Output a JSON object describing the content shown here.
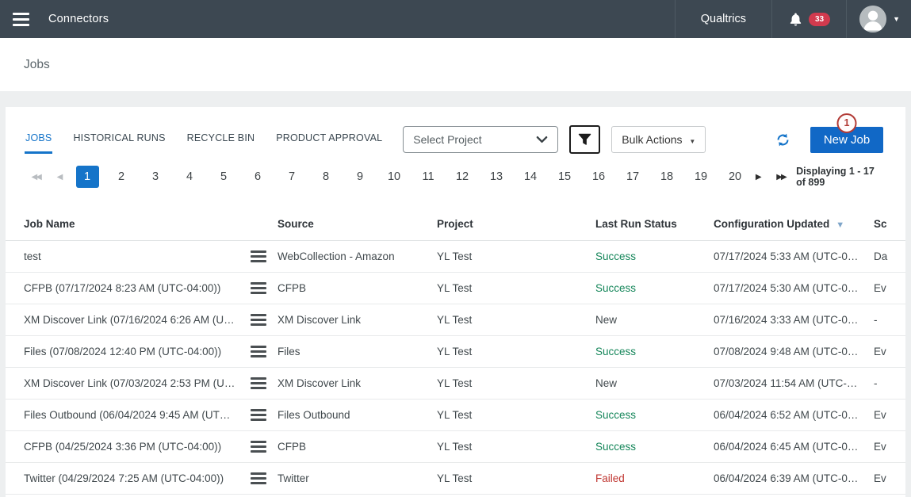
{
  "header": {
    "app_title": "Connectors",
    "brand": "Qualtrics",
    "notification_count": "33"
  },
  "page": {
    "title": "Jobs"
  },
  "tabs": [
    {
      "label": "JOBS",
      "active": true
    },
    {
      "label": "HISTORICAL RUNS",
      "active": false
    },
    {
      "label": "RECYCLE BIN",
      "active": false
    },
    {
      "label": "PRODUCT APPROVAL",
      "active": false
    }
  ],
  "toolbar": {
    "project_select_value": "Select Project",
    "bulk_actions_label": "Bulk Actions",
    "new_job_label": "New Job",
    "annotation_badge": "1"
  },
  "pagination": {
    "pages": [
      "1",
      "2",
      "3",
      "4",
      "5",
      "6",
      "7",
      "8",
      "9",
      "10",
      "11",
      "12",
      "13",
      "14",
      "15",
      "16",
      "17",
      "18",
      "19",
      "20"
    ],
    "active_page": "1",
    "displaying_text": "Displaying 1 - 17 of 899"
  },
  "icons": {
    "first": "◀◀",
    "prev": "◀",
    "next": "▶",
    "last": "▶▶",
    "user_caret": "▼",
    "bulk_caret": "▼",
    "sort_desc": "▼"
  },
  "table": {
    "columns": [
      {
        "label": "Job Name",
        "sorted": false
      },
      {
        "label": "Source",
        "sorted": false
      },
      {
        "label": "Project",
        "sorted": false
      },
      {
        "label": "Last Run Status",
        "sorted": false
      },
      {
        "label": "Configuration Updated",
        "sorted": true
      },
      {
        "label": "Sc",
        "sorted": false
      }
    ],
    "rows": [
      {
        "job_name": "test",
        "source": "WebCollection - Amazon",
        "project": "YL Test",
        "status": "Success",
        "status_type": "success",
        "config_updated": "07/17/2024 5:33 AM (UTC-0…",
        "schedule": "Da"
      },
      {
        "job_name": "CFPB (07/17/2024 8:23 AM (UTC-04:00))",
        "source": "CFPB",
        "project": "YL Test",
        "status": "Success",
        "status_type": "success",
        "config_updated": "07/17/2024 5:30 AM (UTC-0…",
        "schedule": "Ev"
      },
      {
        "job_name": "XM Discover Link (07/16/2024 6:26 AM (U…",
        "source": "XM Discover Link",
        "project": "YL Test",
        "status": "New",
        "status_type": "new",
        "config_updated": "07/16/2024 3:33 AM (UTC-0…",
        "schedule": "-"
      },
      {
        "job_name": "Files (07/08/2024 12:40 PM (UTC-04:00))",
        "source": "Files",
        "project": "YL Test",
        "status": "Success",
        "status_type": "success",
        "config_updated": "07/08/2024 9:48 AM (UTC-0…",
        "schedule": "Ev"
      },
      {
        "job_name": "XM Discover Link (07/03/2024 2:53 PM (U…",
        "source": "XM Discover Link",
        "project": "YL Test",
        "status": "New",
        "status_type": "new",
        "config_updated": "07/03/2024 11:54 AM (UTC-…",
        "schedule": "-"
      },
      {
        "job_name": "Files Outbound (06/04/2024 9:45 AM (UT…",
        "source": "Files Outbound",
        "project": "YL Test",
        "status": "Success",
        "status_type": "success",
        "config_updated": "06/04/2024 6:52 AM (UTC-0…",
        "schedule": "Ev"
      },
      {
        "job_name": "CFPB (04/25/2024 3:36 PM (UTC-04:00))",
        "source": "CFPB",
        "project": "YL Test",
        "status": "Success",
        "status_type": "success",
        "config_updated": "06/04/2024 6:45 AM (UTC-0…",
        "schedule": "Ev"
      },
      {
        "job_name": "Twitter (04/29/2024 7:25 AM (UTC-04:00))",
        "source": "Twitter",
        "project": "YL Test",
        "status": "Failed",
        "status_type": "failed",
        "config_updated": "06/04/2024 6:39 AM (UTC-0…",
        "schedule": "Ev"
      }
    ]
  },
  "colors": {
    "header_bg": "#3d4852",
    "accent_blue": "#1168c6",
    "tab_blue": "#1574c9",
    "success_green": "#15865a",
    "failed_red": "#c03631",
    "badge_red": "#d23a4e",
    "annotation_red": "#b23b36"
  }
}
